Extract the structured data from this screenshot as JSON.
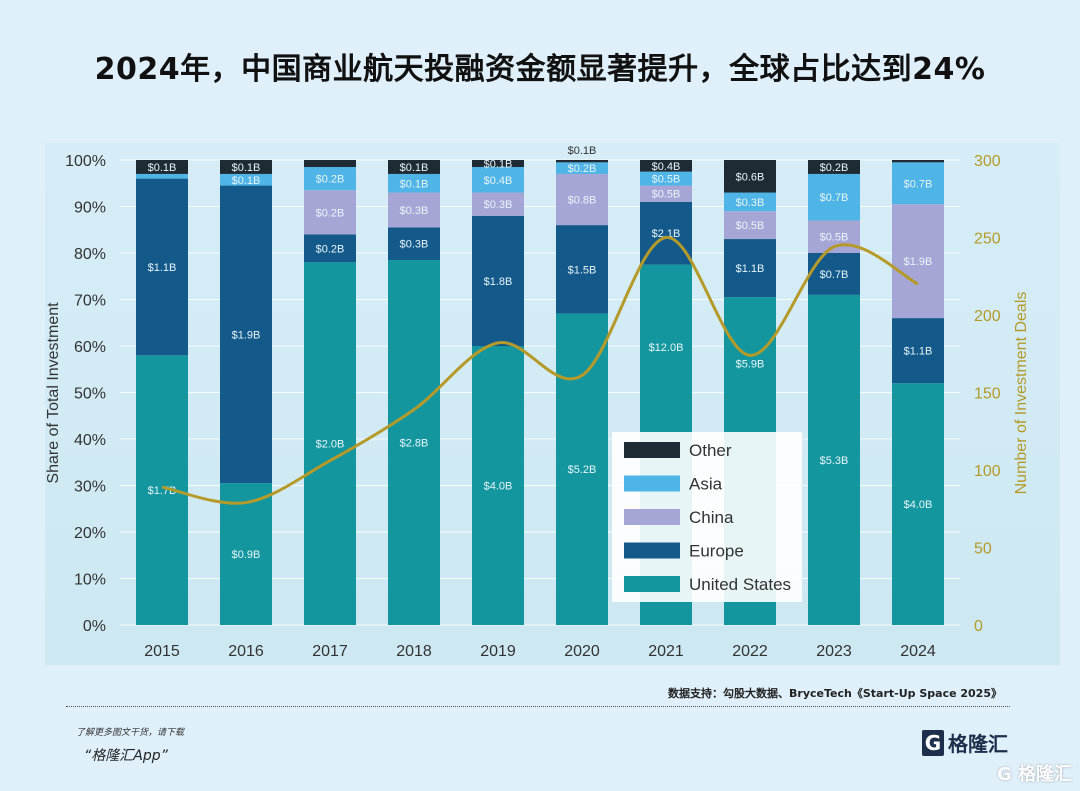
{
  "title": "2024年，中国商业航天投融资金额显著提升，全球占比达到24%",
  "chart_data": {
    "type": "bar",
    "stacked": true,
    "categories": [
      "2015",
      "2016",
      "2017",
      "2018",
      "2019",
      "2020",
      "2021",
      "2022",
      "2023",
      "2024"
    ],
    "ylabel": "Share of Total Investment",
    "y2label": "Number of Investment Deals",
    "ylim": [
      0,
      100
    ],
    "y2lim": [
      0,
      300
    ],
    "yticks": [
      "0%",
      "10%",
      "20%",
      "30%",
      "40%",
      "50%",
      "60%",
      "70%",
      "80%",
      "90%",
      "100%"
    ],
    "y2ticks": [
      "0",
      "50",
      "100",
      "150",
      "200",
      "250",
      "300"
    ],
    "grid": true,
    "legend_placement": "bottom-center",
    "series": [
      {
        "name": "United States",
        "color": "#14969e",
        "share": [
          58,
          30.5,
          78,
          78.5,
          60,
          67,
          77.5,
          70.5,
          71,
          52
        ],
        "labels": [
          "$1.7B",
          "$0.9B",
          "$2.0B",
          "$2.8B",
          "$4.0B",
          "$5.2B",
          "$12.0B",
          "$5.9B",
          "$5.3B",
          "$4.0B"
        ]
      },
      {
        "name": "Europe",
        "color": "#135a8a",
        "share": [
          38,
          64,
          6,
          7,
          28,
          19,
          13.5,
          12.5,
          9,
          14
        ],
        "labels": [
          "$1.1B",
          "$1.9B",
          "$0.2B",
          "$0.3B",
          "$1.8B",
          "$1.5B",
          "$2.1B",
          "$1.1B",
          "$0.7B",
          "$1.1B"
        ]
      },
      {
        "name": "China",
        "color": "#a6a6d6",
        "share": [
          0,
          0,
          9.5,
          7.5,
          5,
          11,
          3.5,
          6,
          7,
          24.5
        ],
        "labels": [
          "",
          "",
          "$0.2B",
          "$0.3B",
          "$0.3B",
          "$0.8B",
          "$0.5B",
          "$0.5B",
          "$0.5B",
          "$1.9B"
        ]
      },
      {
        "name": "Asia",
        "color": "#4fb4e6",
        "share": [
          1,
          2.5,
          5,
          4,
          5.5,
          2.5,
          3,
          4,
          10,
          9
        ],
        "labels": [
          "",
          "$0.1B",
          "$0.2B",
          "$0.1B",
          "$0.4B",
          "$0.2B",
          "$0.5B",
          "$0.3B",
          "$0.7B",
          "$0.7B"
        ]
      },
      {
        "name": "Other",
        "color": "#1f2b34",
        "share": [
          3,
          3,
          1.5,
          3,
          1.5,
          0.5,
          2.5,
          7,
          3,
          0.5
        ],
        "labels": [
          "$0.1B",
          "$0.1B",
          "",
          "$0.1B",
          "$0.1B",
          "$0.1B",
          "$0.4B",
          "$0.6B",
          "$0.2B",
          ""
        ]
      }
    ],
    "line": {
      "color": "#b59a2a",
      "values": [
        89,
        79,
        106,
        139,
        182,
        161,
        250,
        174,
        244,
        220
      ]
    }
  },
  "footer": {
    "source": "数据支持：勾股大数据、BryceTech《Start-Up Space 2025》",
    "note_line1": "了解更多图文干货，请下载",
    "note_line2": "“格隆汇App”",
    "logo": "格隆汇",
    "watermark": "格隆汇"
  }
}
